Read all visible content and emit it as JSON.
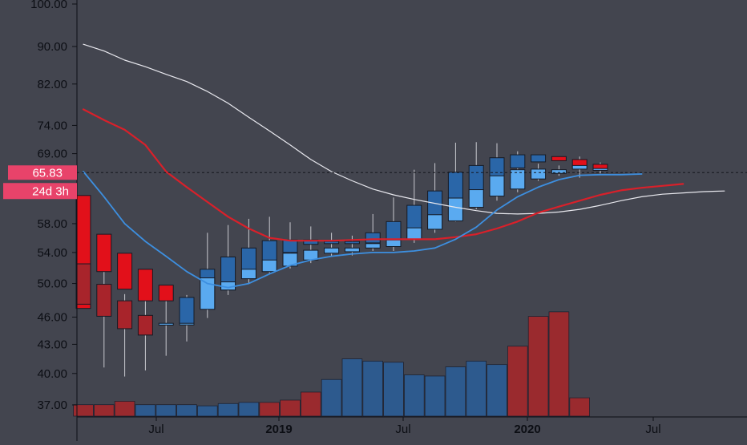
{
  "chart_data": {
    "type": "candlestick",
    "y_axis": {
      "scale": "log",
      "ticks": [
        "100.00",
        "90.00",
        "82.00",
        "74.00",
        "69.00",
        "58.00",
        "54.00",
        "50.00",
        "46.00",
        "43.00",
        "40.00",
        "37.00"
      ],
      "range": [
        35.5,
        101.5
      ]
    },
    "x_axis": {
      "labels": [
        {
          "text": "Jul",
          "bold": false
        },
        {
          "text": "2019",
          "bold": true
        },
        {
          "text": "Jul",
          "bold": false
        },
        {
          "text": "2020",
          "bold": true
        },
        {
          "text": "Jul",
          "bold": false
        }
      ]
    },
    "price_label": {
      "value": "65.83",
      "price": 65.83,
      "color": "#e8436a"
    },
    "countdown_label": {
      "value": "24d 3h",
      "color": "#e8436a"
    },
    "candles_outer": [
      {
        "month": "2018-03",
        "open": 62.2,
        "high": 62.2,
        "low": 47.0,
        "close": 47.0,
        "dir": "down"
      },
      {
        "month": "2018-04",
        "open": 56.5,
        "high": 56.5,
        "low": 50.6,
        "close": 51.5,
        "dir": "down"
      },
      {
        "month": "2018-05",
        "open": 53.9,
        "high": 53.9,
        "low": 48.8,
        "close": 49.3,
        "dir": "down"
      },
      {
        "month": "2018-06",
        "open": 51.8,
        "high": 51.8,
        "low": 47.3,
        "close": 47.9,
        "dir": "down"
      },
      {
        "month": "2018-07",
        "open": 49.8,
        "high": 49.8,
        "low": 47.7,
        "close": 47.9,
        "dir": "down"
      },
      {
        "month": "2018-08",
        "open": 45.2,
        "high": 48.9,
        "low": 45.2,
        "close": 48.3,
        "dir": "up"
      },
      {
        "month": "2018-09",
        "open": 47.0,
        "high": 52.3,
        "low": 47.0,
        "close": 51.8,
        "dir": "up"
      },
      {
        "month": "2018-10",
        "open": 49.2,
        "high": 53.4,
        "low": 49.2,
        "close": 53.4,
        "dir": "up"
      },
      {
        "month": "2018-11",
        "open": 50.6,
        "high": 54.6,
        "low": 50.6,
        "close": 54.6,
        "dir": "up"
      },
      {
        "month": "2018-12",
        "open": 51.5,
        "high": 55.6,
        "low": 51.5,
        "close": 55.6,
        "dir": "up"
      },
      {
        "month": "2019-01",
        "open": 54.0,
        "high": 55.7,
        "low": 54.0,
        "close": 55.7,
        "dir": "up"
      },
      {
        "month": "2019-02",
        "open": 55.1,
        "high": 55.7,
        "low": 55.1,
        "close": 55.7,
        "dir": "up"
      },
      {
        "month": "2019-03",
        "open": 55.2,
        "high": 55.5,
        "low": 55.2,
        "close": 55.5,
        "dir": "up"
      },
      {
        "month": "2019-04",
        "open": 55.2,
        "high": 55.5,
        "low": 55.2,
        "close": 55.5,
        "dir": "up"
      },
      {
        "month": "2019-05",
        "open": 55.3,
        "high": 56.7,
        "low": 55.3,
        "close": 56.7,
        "dir": "up"
      },
      {
        "month": "2019-06",
        "open": 54.8,
        "high": 58.3,
        "low": 54.8,
        "close": 58.3,
        "dir": "up"
      },
      {
        "month": "2019-07",
        "open": 55.8,
        "high": 60.7,
        "low": 55.8,
        "close": 60.7,
        "dir": "up"
      },
      {
        "month": "2019-08",
        "open": 57.2,
        "high": 62.9,
        "low": 57.2,
        "close": 62.9,
        "dir": "up"
      },
      {
        "month": "2019-09",
        "open": 59.4,
        "high": 65.9,
        "low": 59.4,
        "close": 65.9,
        "dir": "up"
      },
      {
        "month": "2019-10",
        "open": 61.8,
        "high": 67.0,
        "low": 61.8,
        "close": 67.0,
        "dir": "up"
      },
      {
        "month": "2019-11",
        "open": 65.1,
        "high": 68.3,
        "low": 65.1,
        "close": 68.3,
        "dir": "up"
      },
      {
        "month": "2019-12",
        "open": 66.6,
        "high": 68.8,
        "low": 66.6,
        "close": 68.8,
        "dir": "up"
      },
      {
        "month": "2020-01",
        "open": 67.6,
        "high": 68.8,
        "low": 67.6,
        "close": 68.8,
        "dir": "up"
      },
      {
        "month": "2020-02",
        "open": 68.5,
        "high": 68.5,
        "low": 67.8,
        "close": 67.8,
        "dir": "down"
      },
      {
        "month": "2020-03",
        "open": 68.0,
        "high": 68.0,
        "low": 66.8,
        "close": 66.8,
        "dir": "down"
      },
      {
        "month": "2020-04",
        "open": 67.2,
        "high": 67.2,
        "low": 66.2,
        "close": 66.2,
        "dir": "down"
      }
    ],
    "candles_inner": [
      {
        "month": "2018-03",
        "open": 52.5,
        "high": 52.5,
        "low": 47.5,
        "close": 47.5,
        "dir": "down"
      },
      {
        "month": "2018-04",
        "open": 49.9,
        "high": 51.5,
        "low": 40.6,
        "close": 46.1,
        "dir": "down"
      },
      {
        "month": "2018-05",
        "open": 47.9,
        "high": 48.7,
        "low": 39.7,
        "close": 44.7,
        "dir": "down"
      },
      {
        "month": "2018-06",
        "open": 46.2,
        "high": 48.2,
        "low": 40.3,
        "close": 44.0,
        "dir": "down"
      },
      {
        "month": "2018-07",
        "open": 45.1,
        "high": 48.5,
        "low": 41.8,
        "close": 45.3,
        "dir": "up"
      },
      {
        "month": "2018-08",
        "open": 45.2,
        "high": 48.6,
        "low": 43.3,
        "close": 45.3,
        "dir": "up"
      },
      {
        "month": "2018-09",
        "open": 46.9,
        "high": 56.7,
        "low": 45.9,
        "close": 50.7,
        "dir": "up"
      },
      {
        "month": "2018-10",
        "open": 49.2,
        "high": 57.8,
        "low": 48.6,
        "close": 50.2,
        "dir": "up"
      },
      {
        "month": "2018-11",
        "open": 50.6,
        "high": 58.7,
        "low": 50.0,
        "close": 51.8,
        "dir": "up"
      },
      {
        "month": "2018-12",
        "open": 51.5,
        "high": 59.0,
        "low": 51.3,
        "close": 53.0,
        "dir": "up"
      },
      {
        "month": "2019-01",
        "open": 52.2,
        "high": 58.2,
        "low": 51.9,
        "close": 53.9,
        "dir": "up"
      },
      {
        "month": "2019-02",
        "open": 53.0,
        "high": 57.6,
        "low": 52.6,
        "close": 54.3,
        "dir": "up"
      },
      {
        "month": "2019-03",
        "open": 53.9,
        "high": 56.7,
        "low": 53.5,
        "close": 54.6,
        "dir": "up"
      },
      {
        "month": "2019-04",
        "open": 54.1,
        "high": 56.3,
        "low": 53.6,
        "close": 54.6,
        "dir": "up"
      },
      {
        "month": "2019-05",
        "open": 54.6,
        "high": 59.4,
        "low": 54.2,
        "close": 55.2,
        "dir": "up"
      },
      {
        "month": "2019-06",
        "open": 54.8,
        "high": 61.9,
        "low": 54.2,
        "close": 55.7,
        "dir": "up"
      },
      {
        "month": "2019-07",
        "open": 55.8,
        "high": 66.3,
        "low": 55.3,
        "close": 57.4,
        "dir": "up"
      },
      {
        "month": "2019-08",
        "open": 57.2,
        "high": 67.4,
        "low": 56.7,
        "close": 59.3,
        "dir": "up"
      },
      {
        "month": "2019-09",
        "open": 58.4,
        "high": 70.9,
        "low": 58.3,
        "close": 61.8,
        "dir": "up"
      },
      {
        "month": "2019-10",
        "open": 60.4,
        "high": 71.0,
        "low": 60.1,
        "close": 63.1,
        "dir": "up"
      },
      {
        "month": "2019-11",
        "open": 62.1,
        "high": 70.8,
        "low": 61.4,
        "close": 65.3,
        "dir": "up"
      },
      {
        "month": "2019-12",
        "open": 63.2,
        "high": 69.4,
        "low": 62.7,
        "close": 66.3,
        "dir": "up"
      },
      {
        "month": "2020-01",
        "open": 64.8,
        "high": 67.3,
        "low": 64.5,
        "close": 66.4,
        "dir": "up"
      },
      {
        "month": "2020-02",
        "open": 65.7,
        "high": 67.0,
        "low": 65.3,
        "close": 66.3,
        "dir": "up"
      },
      {
        "month": "2020-03",
        "open": 66.4,
        "high": 68.5,
        "low": 65.0,
        "close": 67.0,
        "dir": "up"
      },
      {
        "month": "2020-04",
        "open": 66.2,
        "high": 67.5,
        "low": 65.7,
        "close": 66.5,
        "dir": "up"
      }
    ],
    "volume": [
      {
        "month": "2018-03",
        "value": 1.0,
        "dir": "down"
      },
      {
        "month": "2018-04",
        "value": 1.0,
        "dir": "down"
      },
      {
        "month": "2018-05",
        "value": 1.3,
        "dir": "down"
      },
      {
        "month": "2018-06",
        "value": 1.0,
        "dir": "up"
      },
      {
        "month": "2018-07",
        "value": 1.0,
        "dir": "up"
      },
      {
        "month": "2018-08",
        "value": 1.0,
        "dir": "up"
      },
      {
        "month": "2018-09",
        "value": 0.9,
        "dir": "up"
      },
      {
        "month": "2018-10",
        "value": 1.1,
        "dir": "up"
      },
      {
        "month": "2018-11",
        "value": 1.2,
        "dir": "up"
      },
      {
        "month": "2018-12",
        "value": 1.2,
        "dir": "down"
      },
      {
        "month": "2019-01",
        "value": 1.4,
        "dir": "down"
      },
      {
        "month": "2019-02",
        "value": 2.1,
        "dir": "down"
      },
      {
        "month": "2019-03",
        "value": 3.2,
        "dir": "up"
      },
      {
        "month": "2019-04",
        "value": 5.0,
        "dir": "up"
      },
      {
        "month": "2019-05",
        "value": 4.8,
        "dir": "up"
      },
      {
        "month": "2019-06",
        "value": 4.7,
        "dir": "up"
      },
      {
        "month": "2019-07",
        "value": 3.6,
        "dir": "up"
      },
      {
        "month": "2019-08",
        "value": 3.5,
        "dir": "up"
      },
      {
        "month": "2019-09",
        "value": 4.3,
        "dir": "up"
      },
      {
        "month": "2019-10",
        "value": 4.8,
        "dir": "up"
      },
      {
        "month": "2019-11",
        "value": 4.5,
        "dir": "up"
      },
      {
        "month": "2019-12",
        "value": 6.1,
        "dir": "down"
      },
      {
        "month": "2020-01",
        "value": 8.7,
        "dir": "down"
      },
      {
        "month": "2020-02",
        "value": 9.1,
        "dir": "down"
      },
      {
        "month": "2020-03",
        "value": 1.6,
        "dir": "down"
      }
    ],
    "ma_lines": [
      {
        "color": "#e8e8ee",
        "width": 1.2,
        "points": [
          [
            0,
            90.5
          ],
          [
            1,
            89.0
          ],
          [
            2,
            87.0
          ],
          [
            3,
            85.6
          ],
          [
            4,
            84.0
          ],
          [
            5,
            82.5
          ],
          [
            6,
            80.5
          ],
          [
            7,
            78.2
          ],
          [
            8,
            75.5
          ],
          [
            9,
            73.0
          ],
          [
            10,
            70.5
          ],
          [
            11,
            68.0
          ],
          [
            12,
            66.0
          ],
          [
            13,
            64.5
          ],
          [
            14,
            63.2
          ],
          [
            15,
            62.3
          ],
          [
            16,
            61.6
          ],
          [
            17,
            61.0
          ],
          [
            18,
            60.4
          ],
          [
            19,
            59.9
          ],
          [
            20,
            59.5
          ],
          [
            21,
            59.4
          ],
          [
            22,
            59.5
          ],
          [
            23,
            59.7
          ],
          [
            24,
            60.1
          ],
          [
            25,
            60.7
          ],
          [
            26,
            61.4
          ],
          [
            27,
            62.0
          ],
          [
            28,
            62.4
          ],
          [
            29,
            62.6
          ],
          [
            30,
            62.8
          ],
          [
            31,
            62.9
          ]
        ]
      },
      {
        "color": "#d9202a",
        "width": 2.2,
        "points": [
          [
            0,
            77.0
          ],
          [
            1,
            75.0
          ],
          [
            2,
            73.2
          ],
          [
            3,
            70.5
          ],
          [
            4,
            66.0
          ],
          [
            5,
            63.5
          ],
          [
            6,
            61.2
          ],
          [
            7,
            59.0
          ],
          [
            8,
            57.3
          ],
          [
            9,
            56.0
          ],
          [
            10,
            55.6
          ],
          [
            11,
            55.6
          ],
          [
            12,
            55.6
          ],
          [
            13,
            55.7
          ],
          [
            14,
            55.8
          ],
          [
            15,
            55.8
          ],
          [
            16,
            55.8
          ],
          [
            17,
            55.8
          ],
          [
            18,
            56.1
          ],
          [
            19,
            56.5
          ],
          [
            20,
            57.3
          ],
          [
            21,
            58.3
          ],
          [
            22,
            59.6
          ],
          [
            23,
            60.5
          ],
          [
            24,
            61.4
          ],
          [
            25,
            62.3
          ],
          [
            26,
            63.0
          ],
          [
            27,
            63.4
          ],
          [
            28,
            63.7
          ],
          [
            29,
            64.0
          ]
        ]
      },
      {
        "color": "#3d8fe0",
        "width": 1.8,
        "points": [
          [
            0,
            66.0
          ],
          [
            1,
            62.0
          ],
          [
            2,
            58.0
          ],
          [
            3,
            55.5
          ],
          [
            4,
            53.5
          ],
          [
            5,
            51.5
          ],
          [
            6,
            50.0
          ],
          [
            7,
            49.5
          ],
          [
            8,
            50.0
          ],
          [
            9,
            51.2
          ],
          [
            10,
            52.3
          ],
          [
            11,
            53.0
          ],
          [
            12,
            53.5
          ],
          [
            13,
            53.8
          ],
          [
            14,
            54.0
          ],
          [
            15,
            54.0
          ],
          [
            16,
            54.2
          ],
          [
            17,
            54.6
          ],
          [
            18,
            55.8
          ],
          [
            19,
            57.5
          ],
          [
            20,
            60.0
          ],
          [
            21,
            62.0
          ],
          [
            22,
            63.5
          ],
          [
            23,
            64.7
          ],
          [
            24,
            65.4
          ],
          [
            25,
            65.5
          ],
          [
            26,
            65.5
          ],
          [
            27,
            65.6
          ]
        ]
      }
    ]
  }
}
